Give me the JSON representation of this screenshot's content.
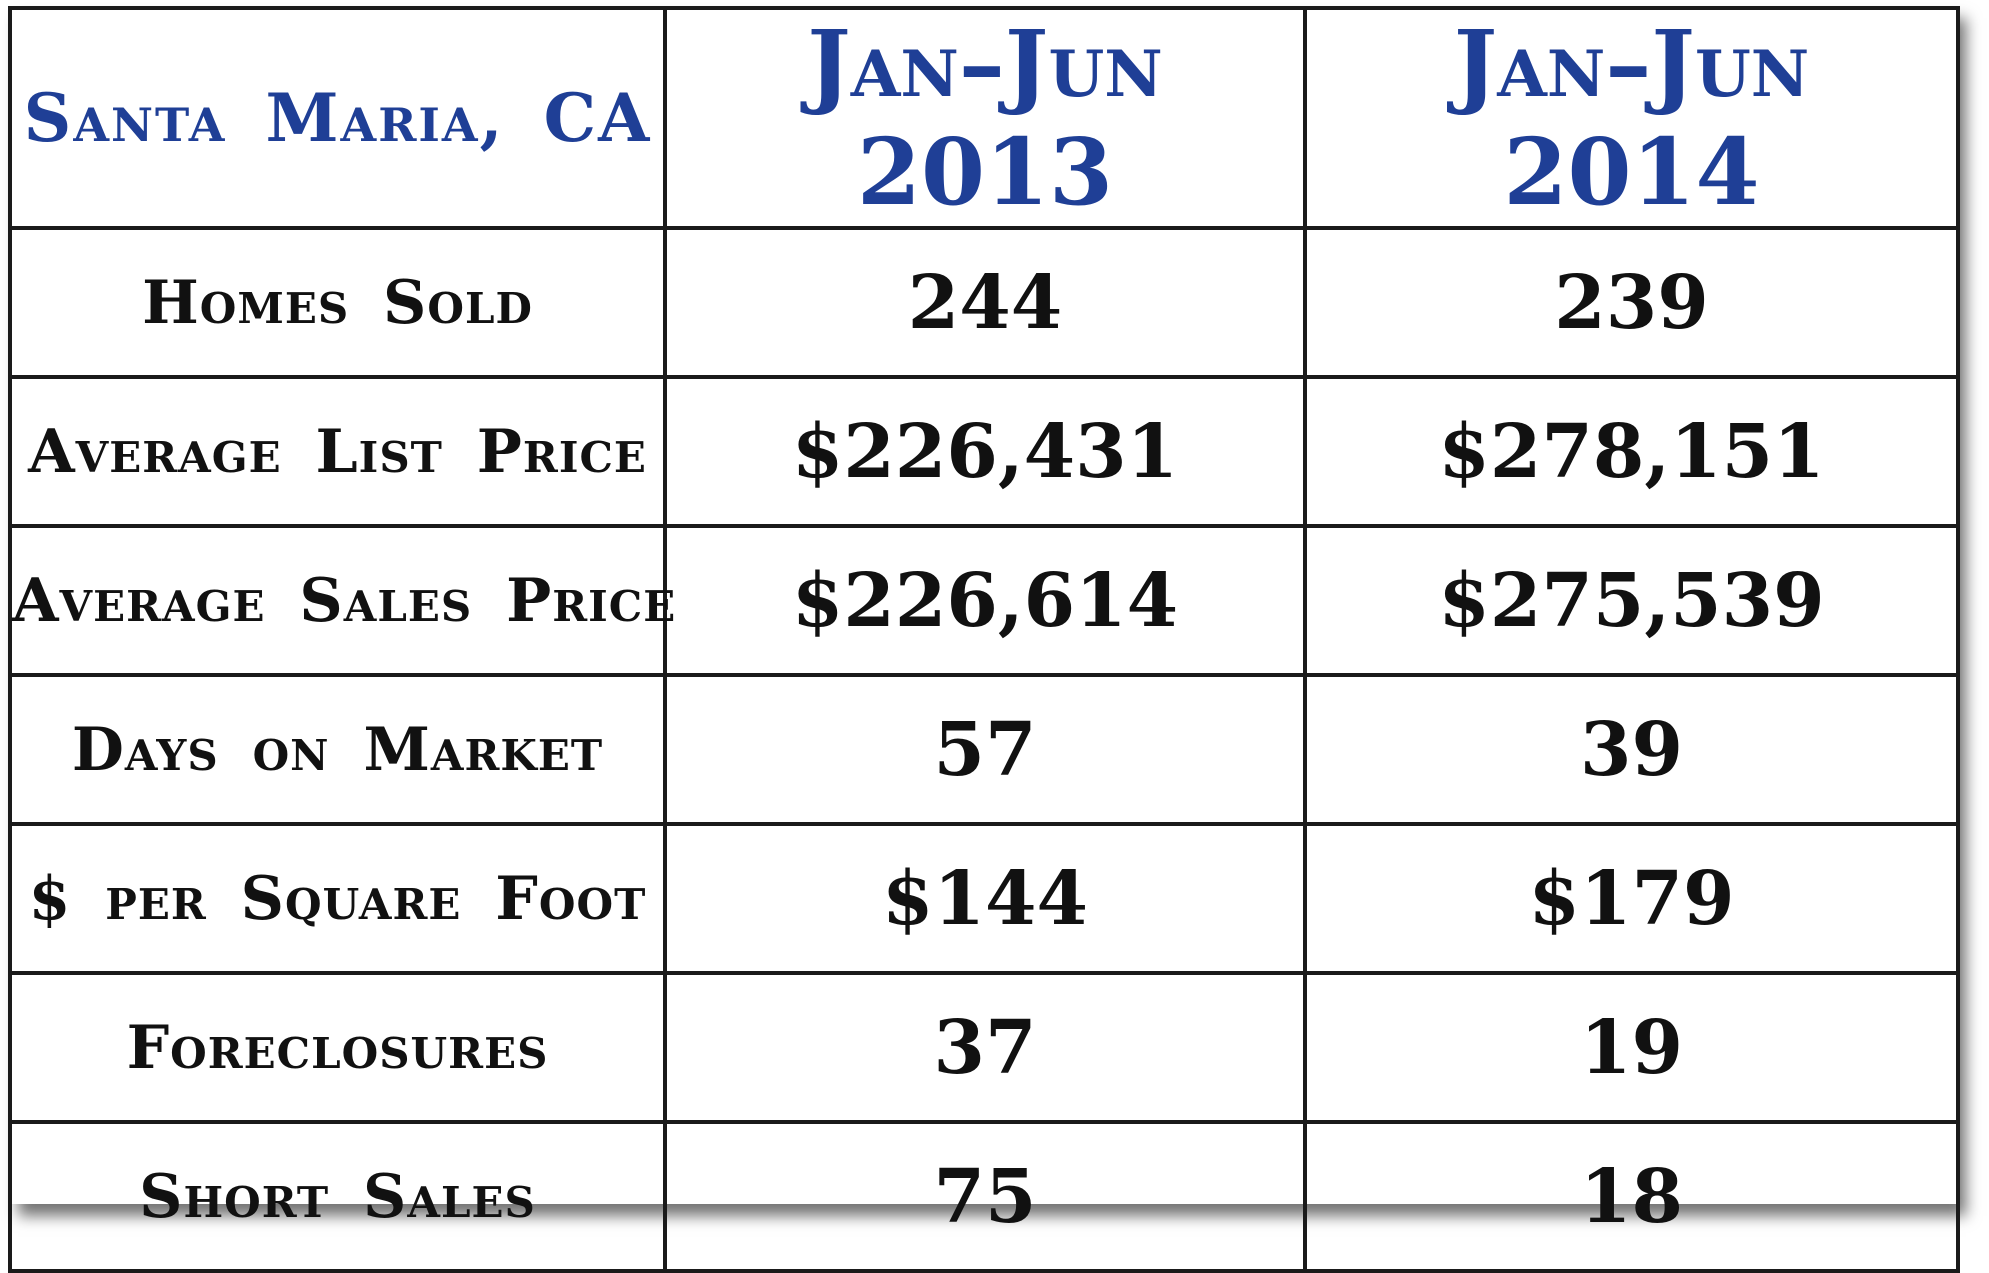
{
  "table": {
    "header": {
      "location": "Santa Maria, CA",
      "period_1": "Jan–Jun 2013",
      "period_2": "Jan–Jun 2014"
    },
    "rows": [
      {
        "metric": "Homes Sold",
        "v2013": "244",
        "v2014": "239"
      },
      {
        "metric": "Average List Price",
        "v2013": "$226,431",
        "v2014": "$278,151"
      },
      {
        "metric": "Average Sales Price",
        "v2013": "$226,614",
        "v2014": "$275,539"
      },
      {
        "metric": "Days on Market",
        "v2013": "57",
        "v2014": "39"
      },
      {
        "metric": "$ per Square Foot",
        "v2013": "$144",
        "v2014": "$179"
      },
      {
        "metric": "Foreclosures",
        "v2013": "37",
        "v2014": "19"
      },
      {
        "metric": "Short Sales",
        "v2013": "75",
        "v2014": "18"
      }
    ]
  },
  "colors": {
    "header_text": "#1f3f96",
    "body_text": "#111111",
    "border": "#1a1a1a"
  }
}
